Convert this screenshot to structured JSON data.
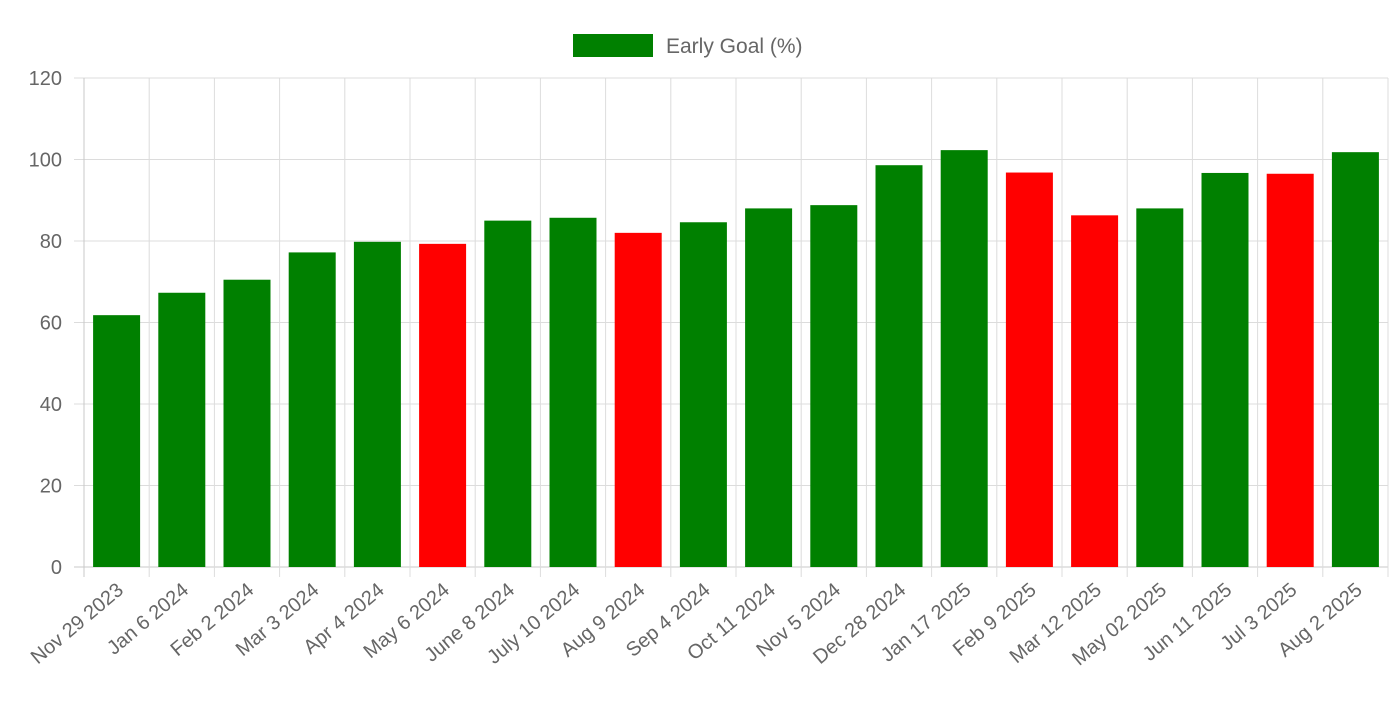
{
  "chart_data": {
    "type": "bar",
    "title": "",
    "xlabel": "",
    "ylabel": "",
    "ylim": [
      0,
      120
    ],
    "yticks": [
      0,
      20,
      40,
      60,
      80,
      100,
      120
    ],
    "grid": true,
    "legend": {
      "position": "top-center",
      "label": "Early Goal (%)",
      "color": "#008000"
    },
    "colors": {
      "good": "#008000",
      "bad": "#ff0000"
    },
    "categories": [
      "Nov 29 2023",
      "Jan 6 2024",
      "Feb 2 2024",
      "Mar 3 2024",
      "Apr 4 2024",
      "May 6 2024",
      "June 8 2024",
      "July 10 2024",
      "Aug 9 2024",
      "Sep 4 2024",
      "Oct 11 2024",
      "Nov 5 2024",
      "Dec 28 2024",
      "Jan 17 2025",
      "Feb 9 2025",
      "Mar 12 2025",
      "May 02 2025",
      "Jun 11 2025",
      "Jul 3 2025",
      "Aug 2 2025"
    ],
    "series": [
      {
        "name": "Early Goal (%)",
        "values": [
          61.8,
          67.3,
          70.5,
          77.2,
          79.8,
          79.3,
          85.0,
          85.7,
          82.0,
          84.6,
          88.0,
          88.8,
          98.6,
          102.3,
          96.8,
          86.3,
          88.0,
          96.7,
          96.5,
          101.8
        ],
        "bar_colors": [
          "good",
          "good",
          "good",
          "good",
          "good",
          "bad",
          "good",
          "good",
          "bad",
          "good",
          "good",
          "good",
          "good",
          "good",
          "bad",
          "bad",
          "good",
          "good",
          "bad",
          "good"
        ]
      }
    ]
  }
}
